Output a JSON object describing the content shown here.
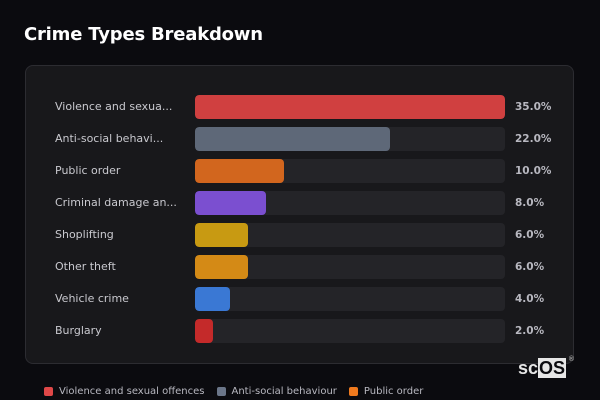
{
  "title": "Crime Types Breakdown",
  "chart_data": {
    "type": "bar",
    "orientation": "horizontal",
    "title": "Crime Types Breakdown",
    "categories": [
      "Violence and sexual offences",
      "Anti-social behaviour",
      "Public order",
      "Criminal damage and arson",
      "Shoplifting",
      "Other theft",
      "Vehicle crime",
      "Burglary"
    ],
    "display_labels": [
      "Violence and sexua...",
      "Anti-social behavi...",
      "Public order",
      "Criminal damage an...",
      "Shoplifting",
      "Other theft",
      "Vehicle crime",
      "Burglary"
    ],
    "values": [
      35.0,
      22.0,
      10.0,
      8.0,
      6.0,
      6.0,
      4.0,
      2.0
    ],
    "value_labels": [
      "35.0%",
      "22.0%",
      "10.0%",
      "8.0%",
      "6.0%",
      "6.0%",
      "4.0%",
      "2.0%"
    ],
    "colors": [
      "#d04040",
      "#5e6878",
      "#d2661e",
      "#7b4fd0",
      "#c89a12",
      "#d48a16",
      "#3a78d4",
      "#c42a2a"
    ],
    "xlim": [
      0,
      35
    ],
    "xlabel": "",
    "ylabel": "",
    "grid": false,
    "legend_position": "bottom"
  },
  "legend": [
    {
      "label": "Violence and sexual offences",
      "color": "#e04848"
    },
    {
      "label": "Anti-social behaviour",
      "color": "#6b7689"
    },
    {
      "label": "Public order",
      "color": "#f07a1e"
    }
  ],
  "logo": {
    "prefix": "sc",
    "highlight": "OS",
    "mark": "®"
  }
}
